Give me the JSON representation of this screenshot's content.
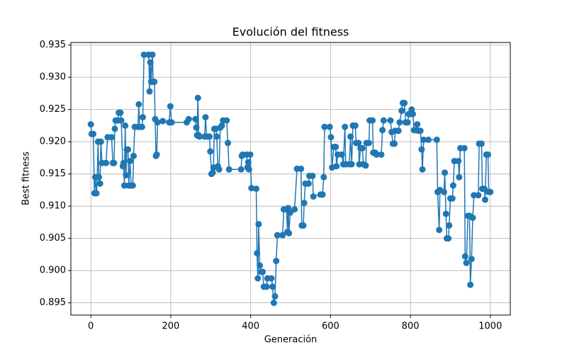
{
  "chart_data": {
    "type": "line",
    "title": "Evolución del fitness",
    "x_label": "Generación",
    "y_label": "Best fitness",
    "grid": true,
    "markers": true,
    "xlim": [
      -50,
      1050
    ],
    "ylim": [
      0.8931,
      0.9354
    ],
    "xticks": [
      0,
      200,
      400,
      600,
      800,
      1000
    ],
    "yticks": [
      0.895,
      {
        "value": 0.9,
        "label": "0.900"
      },
      0.905,
      {
        "value": 0.91,
        "label": "0.910"
      },
      0.915,
      {
        "value": 0.92,
        "label": "0.920"
      },
      0.925,
      {
        "value": 0.93,
        "label": "0.930"
      },
      0.935
    ],
    "series": [
      {
        "color": "#1f77b4",
        "x": [
          0,
          2,
          6,
          9,
          11,
          14,
          16,
          18,
          20,
          23,
          25,
          28,
          38,
          42,
          52,
          55,
          58,
          60,
          62,
          68,
          70,
          74,
          76,
          80,
          82,
          84,
          86,
          88,
          90,
          93,
          95,
          98,
          101,
          105,
          107,
          110,
          118,
          120,
          122,
          128,
          130,
          133,
          145,
          147,
          149,
          151,
          154,
          156,
          159,
          161,
          163,
          165,
          167,
          180,
          196,
          199,
          202,
          240,
          245,
          262,
          264,
          266,
          268,
          270,
          272,
          285,
          287,
          290,
          297,
          299,
          302,
          305,
          307,
          309,
          313,
          315,
          318,
          321,
          324,
          328,
          331,
          340,
          343,
          346,
          376,
          378,
          380,
          390,
          392,
          394,
          396,
          399,
          402,
          414,
          416,
          418,
          420,
          423,
          426,
          430,
          433,
          440,
          442,
          452,
          455,
          458,
          461,
          464,
          467,
          480,
          483,
          490,
          492,
          494,
          496,
          499,
          510,
          516,
          526,
          528,
          532,
          534,
          537,
          545,
          547,
          555,
          557,
          575,
          580,
          583,
          585,
          598,
          601,
          604,
          608,
          613,
          615,
          618,
          628,
          632,
          636,
          638,
          647,
          650,
          653,
          656,
          662,
          664,
          670,
          672,
          675,
          680,
          682,
          688,
          690,
          696,
          698,
          705,
          707,
          712,
          715,
          727,
          730,
          733,
          750,
          753,
          756,
          760,
          762,
          770,
          773,
          778,
          781,
          785,
          788,
          793,
          796,
          800,
          803,
          806,
          809,
          814,
          817,
          820,
          825,
          828,
          830,
          833,
          845,
          866,
          868,
          872,
          874,
          884,
          886,
          889,
          891,
          895,
          897,
          900,
          905,
          907,
          910,
          920,
          922,
          925,
          935,
          937,
          940,
          944,
          948,
          950,
          953,
          956,
          959,
          970,
          972,
          978,
          980,
          985,
          987,
          990,
          994,
          996,
          1000
        ],
        "values": [
          0.9227,
          0.9212,
          0.9212,
          0.912,
          0.9145,
          0.912,
          0.9145,
          0.92,
          0.9145,
          0.9135,
          0.92,
          0.9167,
          0.9167,
          0.9207,
          0.9207,
          0.9167,
          0.9167,
          0.922,
          0.9233,
          0.9233,
          0.9245,
          0.9245,
          0.9233,
          0.9162,
          0.9167,
          0.9132,
          0.9225,
          0.9148,
          0.9188,
          0.9188,
          0.9132,
          0.917,
          0.9132,
          0.9132,
          0.9178,
          0.9223,
          0.9223,
          0.9258,
          0.9223,
          0.9223,
          0.9238,
          0.9335,
          0.9335,
          0.9278,
          0.9323,
          0.9293,
          0.9335,
          0.9293,
          0.9293,
          0.9235,
          0.9178,
          0.918,
          0.923,
          0.9232,
          0.923,
          0.9255,
          0.923,
          0.923,
          0.9235,
          0.9235,
          0.9222,
          0.921,
          0.9268,
          0.921,
          0.9208,
          0.9208,
          0.9238,
          0.9208,
          0.9208,
          0.9185,
          0.915,
          0.9152,
          0.916,
          0.922,
          0.922,
          0.9208,
          0.9162,
          0.9157,
          0.9222,
          0.9225,
          0.9233,
          0.9233,
          0.9198,
          0.9157,
          0.9157,
          0.9178,
          0.918,
          0.918,
          0.916,
          0.9168,
          0.9157,
          0.918,
          0.9128,
          0.9127,
          0.9027,
          0.8988,
          0.9072,
          0.9008,
          0.8998,
          0.8998,
          0.8975,
          0.8975,
          0.8988,
          0.8988,
          0.8975,
          0.895,
          0.896,
          0.9015,
          0.9055,
          0.9055,
          0.9095,
          0.9095,
          0.906,
          0.9097,
          0.9058,
          0.909,
          0.9095,
          0.9158,
          0.9158,
          0.907,
          0.907,
          0.9105,
          0.9135,
          0.9135,
          0.9147,
          0.9147,
          0.9115,
          0.9118,
          0.9118,
          0.9145,
          0.9223,
          0.9223,
          0.9207,
          0.916,
          0.9192,
          0.9192,
          0.9162,
          0.918,
          0.918,
          0.9165,
          0.9223,
          0.9165,
          0.9165,
          0.9208,
          0.9165,
          0.9225,
          0.9225,
          0.9198,
          0.9198,
          0.9165,
          0.919,
          0.919,
          0.9165,
          0.9163,
          0.9198,
          0.9198,
          0.9233,
          0.9233,
          0.9183,
          0.9183,
          0.918,
          0.918,
          0.9218,
          0.9233,
          0.9233,
          0.9215,
          0.9197,
          0.9197,
          0.9217,
          0.9217,
          0.923,
          0.9248,
          0.926,
          0.926,
          0.923,
          0.923,
          0.9243,
          0.9243,
          0.925,
          0.9243,
          0.9218,
          0.9218,
          0.9227,
          0.9217,
          0.9217,
          0.9188,
          0.9157,
          0.9203,
          0.9203,
          0.9203,
          0.9122,
          0.9063,
          0.9125,
          0.9122,
          0.9152,
          0.9088,
          0.905,
          0.905,
          0.907,
          0.9112,
          0.9112,
          0.9132,
          0.917,
          0.917,
          0.9145,
          0.919,
          0.919,
          0.9022,
          0.9012,
          0.9085,
          0.9085,
          0.8978,
          0.9018,
          0.9082,
          0.9117,
          0.9117,
          0.9197,
          0.9197,
          0.9127,
          0.9127,
          0.911,
          0.918,
          0.918,
          0.9122,
          0.9122
        ]
      }
    ]
  }
}
